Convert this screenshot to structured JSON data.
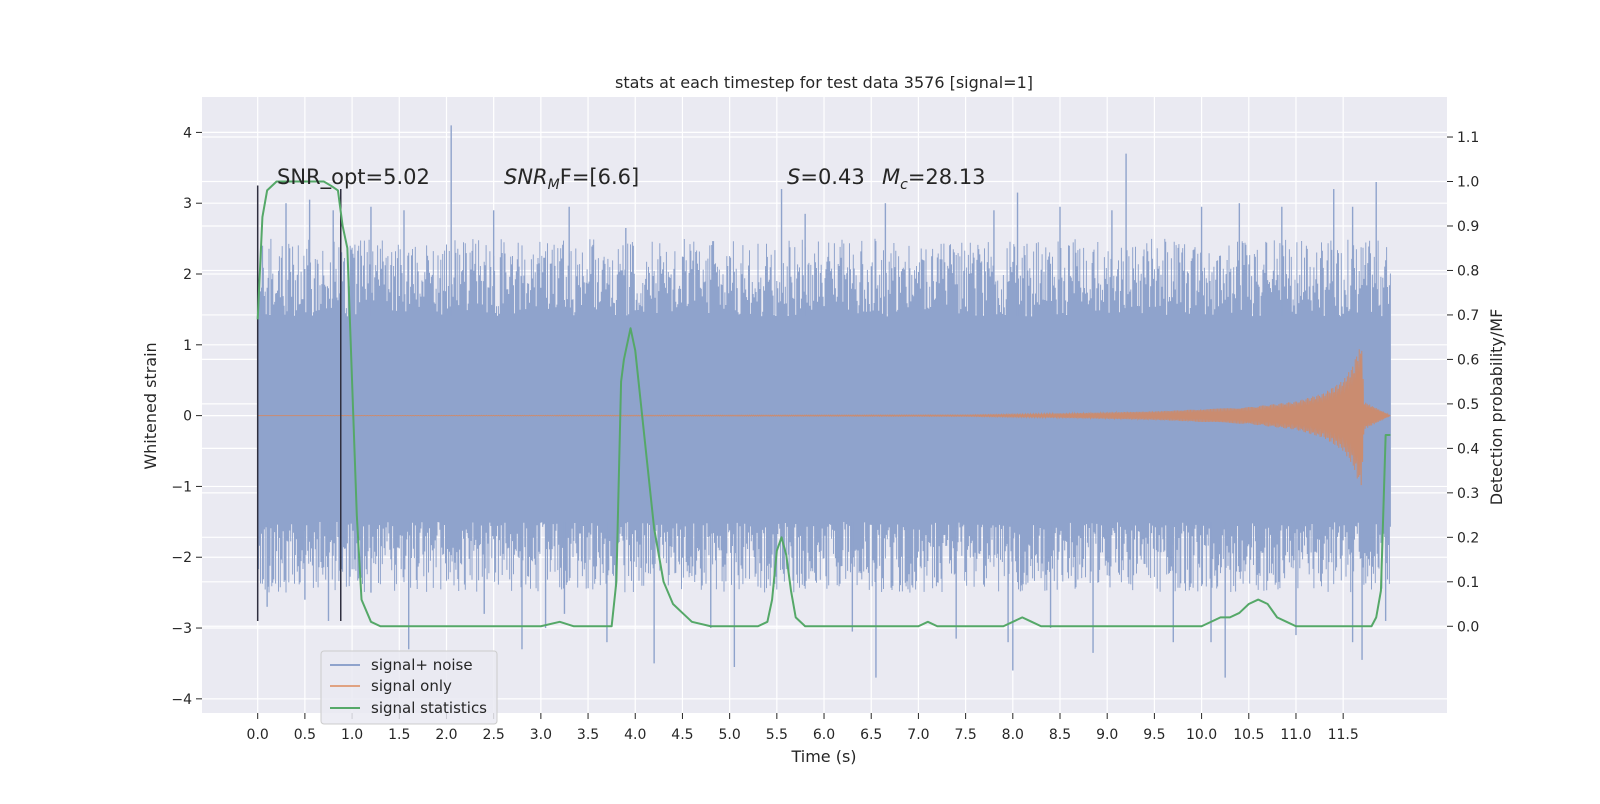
{
  "chart_data": {
    "type": "line",
    "title": "stats at each timestep for test data 3576 [signal=1]",
    "xlabel": "Time (s)",
    "ylabel_left": "Whitened strain",
    "ylabel_right": "Detection probability/MF",
    "xlim": [
      -0.59,
      12.6
    ],
    "ylim_left": [
      -4.2,
      4.5
    ],
    "ylim_right": [
      -0.195,
      1.19
    ],
    "x_ticks": [
      "0.0",
      "0.5",
      "1.0",
      "1.5",
      "2.0",
      "2.5",
      "3.0",
      "3.5",
      "4.0",
      "4.5",
      "5.0",
      "5.5",
      "6.0",
      "6.5",
      "7.0",
      "7.5",
      "8.0",
      "8.5",
      "9.0",
      "9.5",
      "10.0",
      "10.5",
      "11.0",
      "11.5"
    ],
    "y_ticks_left": [
      "4",
      "3",
      "2",
      "1",
      "0",
      "−1",
      "−2",
      "−3",
      "−4"
    ],
    "y_ticks_right": [
      "1.1",
      "1.0",
      "0.9",
      "0.8",
      "0.7",
      "0.6",
      "0.5",
      "0.4",
      "0.3",
      "0.2",
      "0.1",
      "0.0"
    ],
    "grid": true,
    "legend_position": "lower-left",
    "annotations": {
      "snr_opt": "SNR_opt=5.02",
      "snr_mf_sym": "SNR",
      "snr_mf_sub": "M",
      "snr_mf_rest": "F=[6.6]",
      "s_sym": "S",
      "s_rest": "=0.43",
      "mc_sym": "M",
      "mc_sub": "c",
      "mc_rest": "=28.13"
    },
    "colors": {
      "noise": "#8fa3cc",
      "signal": "#dd8452",
      "stats": "#55a868",
      "background": "#eaeaf2",
      "grid": "#ffffff",
      "vline": "#2f2f3f"
    },
    "series": [
      {
        "name": "signal+ noise",
        "axis": "left",
        "x_range": [
          0.0,
          12.0
        ],
        "envelope_upper": 1.4,
        "envelope_lower": -1.5,
        "spikes_up": [
          [
            0.05,
            2.4
          ],
          [
            0.3,
            3.0
          ],
          [
            0.55,
            3.05
          ],
          [
            0.8,
            2.9
          ],
          [
            1.2,
            2.95
          ],
          [
            1.55,
            2.9
          ],
          [
            2.05,
            4.1
          ],
          [
            2.5,
            2.9
          ],
          [
            3.3,
            2.95
          ],
          [
            3.9,
            2.65
          ],
          [
            5.55,
            3.2
          ],
          [
            5.8,
            2.85
          ],
          [
            6.65,
            3.0
          ],
          [
            7.8,
            2.9
          ],
          [
            8.05,
            3.15
          ],
          [
            8.5,
            2.95
          ],
          [
            9.05,
            2.9
          ],
          [
            9.2,
            3.7
          ],
          [
            10.0,
            2.95
          ],
          [
            10.4,
            3.0
          ],
          [
            10.85,
            2.95
          ],
          [
            11.4,
            3.2
          ],
          [
            11.6,
            2.95
          ],
          [
            11.85,
            3.3
          ]
        ],
        "spikes_down": [
          [
            0.1,
            -2.7
          ],
          [
            0.5,
            -2.6
          ],
          [
            0.75,
            -2.9
          ],
          [
            1.2,
            -2.5
          ],
          [
            1.6,
            -3.3
          ],
          [
            2.4,
            -2.8
          ],
          [
            2.8,
            -3.3
          ],
          [
            3.05,
            -3.0
          ],
          [
            3.25,
            -2.8
          ],
          [
            3.7,
            -3.2
          ],
          [
            4.2,
            -3.5
          ],
          [
            4.8,
            -3.0
          ],
          [
            5.05,
            -3.55
          ],
          [
            6.3,
            -3.05
          ],
          [
            6.55,
            -3.7
          ],
          [
            7.4,
            -3.15
          ],
          [
            7.95,
            -3.2
          ],
          [
            8.0,
            -3.6
          ],
          [
            8.4,
            -3.0
          ],
          [
            8.85,
            -3.35
          ],
          [
            9.7,
            -3.2
          ],
          [
            10.1,
            -3.2
          ],
          [
            10.25,
            -3.7
          ],
          [
            11.0,
            -3.1
          ],
          [
            11.6,
            -3.2
          ],
          [
            11.7,
            -3.45
          ],
          [
            11.95,
            -2.9
          ]
        ]
      },
      {
        "name": "signal only",
        "axis": "left",
        "x": [
          0.0,
          7.5,
          8.5,
          9.5,
          10.5,
          11.0,
          11.3,
          11.5,
          11.6,
          11.65,
          11.7,
          11.72,
          12.0
        ],
        "amplitude": [
          0.0,
          0.01,
          0.03,
          0.06,
          0.12,
          0.2,
          0.32,
          0.5,
          0.7,
          0.9,
          1.0,
          0.2,
          0.0
        ]
      },
      {
        "name": "signal statistics",
        "axis": "right",
        "x": [
          0.0,
          0.05,
          0.1,
          0.2,
          0.3,
          0.45,
          0.6,
          0.7,
          0.78,
          0.85,
          0.9,
          0.95,
          1.0,
          1.05,
          1.1,
          1.2,
          1.3,
          1.5,
          2.0,
          2.5,
          3.0,
          3.2,
          3.35,
          3.5,
          3.75,
          3.8,
          3.85,
          3.88,
          3.95,
          4.0,
          4.1,
          4.2,
          4.3,
          4.4,
          4.5,
          4.6,
          4.8,
          5.0,
          5.3,
          5.4,
          5.45,
          5.5,
          5.55,
          5.6,
          5.65,
          5.7,
          5.8,
          6.0,
          6.5,
          7.0,
          7.1,
          7.2,
          7.5,
          7.9,
          8.1,
          8.2,
          8.3,
          8.5,
          9.0,
          9.5,
          10.0,
          10.2,
          10.3,
          10.4,
          10.5,
          10.6,
          10.7,
          10.8,
          10.9,
          11.0,
          11.2,
          11.5,
          11.8,
          11.85,
          11.9,
          11.95,
          12.0
        ],
        "y": [
          0.69,
          0.92,
          0.98,
          1.0,
          1.0,
          1.0,
          1.0,
          1.0,
          0.99,
          0.98,
          0.9,
          0.85,
          0.55,
          0.25,
          0.06,
          0.01,
          0.0,
          0.0,
          0.0,
          0.0,
          0.0,
          0.01,
          0.0,
          0.0,
          0.0,
          0.1,
          0.55,
          0.6,
          0.67,
          0.62,
          0.42,
          0.22,
          0.1,
          0.05,
          0.03,
          0.01,
          0.0,
          0.0,
          0.0,
          0.01,
          0.06,
          0.17,
          0.2,
          0.16,
          0.08,
          0.02,
          0.0,
          0.0,
          0.0,
          0.0,
          0.01,
          0.0,
          0.0,
          0.0,
          0.02,
          0.01,
          0.0,
          0.0,
          0.0,
          0.0,
          0.0,
          0.02,
          0.02,
          0.03,
          0.05,
          0.06,
          0.05,
          0.02,
          0.01,
          0.0,
          0.0,
          0.0,
          0.0,
          0.02,
          0.08,
          0.43,
          0.43
        ]
      }
    ],
    "vlines": [
      {
        "x": 0.0,
        "y": [
          -2.9,
          3.25
        ]
      },
      {
        "x": 0.88,
        "y": [
          -2.9,
          3.2
        ]
      }
    ]
  }
}
